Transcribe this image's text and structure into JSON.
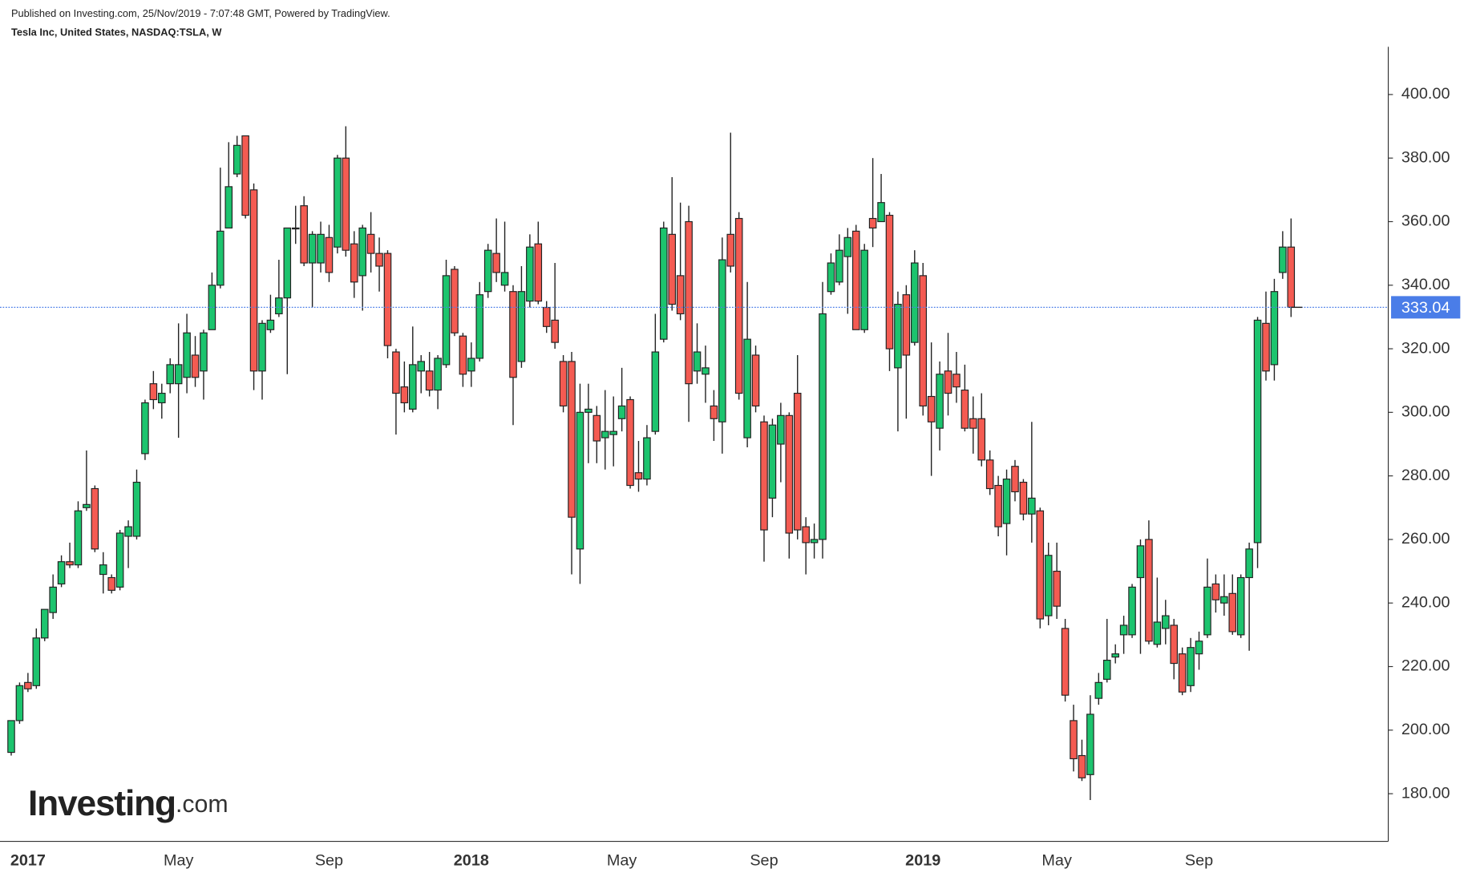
{
  "header": {
    "published": "Published on Investing.com, 25/Nov/2019 - 7:07:48 GMT, Powered by TradingView.",
    "symbol": "Tesla Inc, United States, NASDAQ:TSLA, W"
  },
  "logo": {
    "name": "Investing",
    "suffix": ".com"
  },
  "chart_data": {
    "type": "candlestick",
    "categories": [
      null,
      null,
      "2017",
      null,
      null,
      null,
      null,
      null,
      null,
      null,
      null,
      null,
      null,
      null,
      null,
      null,
      null,
      null,
      null,
      null,
      "May",
      null,
      null,
      null,
      null,
      null,
      null,
      null,
      null,
      null,
      null,
      null,
      null,
      null,
      null,
      null,
      null,
      null,
      "Sep",
      null,
      null,
      null,
      null,
      null,
      null,
      null,
      null,
      null,
      null,
      null,
      null,
      null,
      null,
      null,
      null,
      "2018",
      null,
      null,
      null,
      null,
      null,
      null,
      null,
      null,
      null,
      null,
      null,
      null,
      null,
      null,
      null,
      null,
      null,
      "May",
      null,
      null,
      null,
      null,
      null,
      null,
      null,
      null,
      null,
      null,
      null,
      null,
      null,
      null,
      null,
      null,
      "Sep",
      null,
      null,
      null,
      null,
      null,
      null,
      null,
      null,
      null,
      null,
      null,
      null,
      null,
      null,
      null,
      null,
      null,
      null,
      "2019",
      null,
      null,
      null,
      null,
      null,
      null,
      null,
      null,
      null,
      null,
      null,
      null,
      null,
      null,
      null,
      "May",
      null,
      null,
      null,
      null,
      null,
      null,
      null,
      null,
      null,
      null,
      null,
      null,
      null,
      null,
      null,
      null,
      "Sep",
      null,
      null,
      null,
      null,
      null,
      null,
      null,
      null,
      null,
      null,
      null
    ],
    "open": [
      193,
      203,
      215,
      214,
      229,
      237,
      246,
      253,
      252,
      270,
      276,
      249,
      248,
      245,
      261,
      261,
      287,
      309,
      303,
      309,
      309,
      311,
      318,
      313,
      326,
      340,
      358,
      375,
      387,
      370,
      313,
      326,
      331,
      336,
      358,
      365,
      347,
      347,
      355,
      352,
      380,
      353,
      343,
      356,
      350,
      350,
      319,
      308,
      301,
      313,
      313,
      307,
      315,
      345,
      324,
      313,
      317,
      338,
      350,
      340,
      338,
      316,
      335,
      353,
      333,
      329,
      316,
      316,
      257,
      300,
      299,
      292,
      293,
      298,
      304,
      281,
      279,
      294,
      323,
      356,
      343,
      360,
      313,
      312,
      302,
      297,
      356,
      361,
      292,
      318,
      297,
      273,
      290,
      299,
      306,
      264,
      259,
      260,
      338,
      341,
      349,
      357,
      326,
      361,
      360,
      362,
      314,
      337,
      322,
      343,
      305,
      295,
      313,
      312,
      307,
      298,
      298,
      285,
      277,
      265,
      283,
      278,
      268,
      269,
      236,
      250,
      232,
      203,
      192,
      186,
      210,
      216,
      223,
      230,
      230,
      248,
      260,
      227,
      232,
      233,
      224,
      214,
      224,
      230,
      246,
      240,
      243,
      230,
      248,
      259,
      328,
      315,
      344,
      352
    ],
    "high": [
      203,
      215,
      218,
      232,
      238,
      249,
      255,
      259,
      272,
      288,
      277,
      256,
      249,
      263,
      266,
      282,
      304,
      313,
      309,
      317,
      328,
      331,
      324,
      326,
      344,
      377,
      385,
      387,
      387,
      372,
      329,
      337,
      348,
      358,
      365,
      368,
      357,
      360,
      359,
      381,
      390,
      357,
      359,
      363,
      355,
      351,
      320,
      316,
      327,
      318,
      319,
      318,
      348,
      346,
      325,
      322,
      341,
      353,
      361,
      360,
      340,
      346,
      356,
      360,
      335,
      347,
      318,
      319,
      309,
      309,
      302,
      307,
      305,
      314,
      305,
      291,
      296,
      331,
      360,
      374,
      366,
      365,
      328,
      321,
      307,
      355,
      388,
      363,
      341,
      321,
      299,
      298,
      303,
      300,
      318,
      267,
      265,
      341,
      350,
      356,
      358,
      359,
      353,
      380,
      375,
      363,
      338,
      340,
      351,
      347,
      322,
      316,
      325,
      319,
      315,
      305,
      306,
      288,
      280,
      282,
      285,
      279,
      297,
      270,
      259,
      259,
      235,
      208,
      197,
      211,
      218,
      235,
      227,
      236,
      246,
      260,
      266,
      248,
      241,
      235,
      226,
      229,
      231,
      254,
      249,
      249,
      249,
      249,
      259,
      330,
      338,
      342,
      357,
      361
    ],
    "low": [
      192,
      202,
      212,
      213,
      228,
      235,
      245,
      251,
      251,
      269,
      256,
      243,
      243,
      244,
      251,
      260,
      285,
      301,
      298,
      306,
      292,
      306,
      308,
      304,
      326,
      339,
      358,
      374,
      361,
      307,
      304,
      325,
      330,
      312,
      353,
      346,
      333,
      344,
      341,
      350,
      349,
      336,
      332,
      344,
      338,
      317,
      293,
      300,
      300,
      306,
      305,
      301,
      314,
      324,
      308,
      308,
      316,
      336,
      341,
      338,
      296,
      314,
      333,
      334,
      325,
      320,
      300,
      249,
      246,
      284,
      284,
      282,
      283,
      294,
      276,
      275,
      277,
      293,
      322,
      332,
      329,
      297,
      309,
      303,
      291,
      287,
      344,
      304,
      289,
      300,
      253,
      267,
      278,
      254,
      260,
      249,
      254,
      254,
      337,
      340,
      331,
      326,
      325,
      352,
      360,
      313,
      294,
      298,
      321,
      299,
      280,
      288,
      299,
      303,
      294,
      287,
      283,
      274,
      261,
      255,
      272,
      266,
      259,
      232,
      233,
      235,
      209,
      187,
      184,
      178,
      208,
      215,
      221,
      224,
      229,
      224,
      227,
      226,
      227,
      216,
      211,
      212,
      219,
      229,
      237,
      236,
      230,
      229,
      225,
      251,
      310,
      310,
      342,
      330
    ],
    "close": [
      203,
      214,
      213,
      229,
      238,
      245,
      253,
      252,
      269,
      271,
      257,
      252,
      244,
      262,
      264,
      278,
      303,
      304,
      306,
      315,
      315,
      325,
      311,
      325,
      340,
      357,
      371,
      384,
      362,
      313,
      328,
      329,
      336,
      358,
      358,
      347,
      356,
      356,
      344,
      380,
      351,
      341,
      358,
      350,
      346,
      321,
      306,
      303,
      315,
      316,
      307,
      317,
      343,
      325,
      312,
      317,
      337,
      351,
      344,
      344,
      311,
      338,
      352,
      335,
      327,
      322,
      302,
      267,
      300,
      301,
      291,
      294,
      294,
      302,
      277,
      279,
      292,
      319,
      358,
      334,
      331,
      309,
      319,
      314,
      298,
      348,
      346,
      306,
      323,
      302,
      263,
      296,
      299,
      262,
      263,
      259,
      260,
      331,
      347,
      351,
      355,
      326,
      351,
      358,
      366,
      320,
      334,
      318,
      347,
      302,
      297,
      312,
      306,
      308,
      295,
      295,
      285,
      276,
      264,
      279,
      275,
      268,
      273,
      235,
      255,
      239,
      211,
      191,
      185,
      205,
      215,
      222,
      224,
      233,
      245,
      258,
      228,
      234,
      236,
      221,
      212,
      226,
      228,
      245,
      241,
      242,
      231,
      248,
      257,
      329,
      313,
      338,
      352,
      333.04
    ],
    "up_color": "#1cc46e",
    "down_color": "#f45b52",
    "outline_color": "#222222",
    "last_price_color": "#4a7de8",
    "ylim": [
      165,
      415
    ],
    "yticks": [
      {
        "value": 180,
        "label": "180.00"
      },
      {
        "value": 200,
        "label": "200.00"
      },
      {
        "value": 220,
        "label": "220.00"
      },
      {
        "value": 240,
        "label": "240.00"
      },
      {
        "value": 260,
        "label": "260.00"
      },
      {
        "value": 280,
        "label": "280.00"
      },
      {
        "value": 300,
        "label": "300.00"
      },
      {
        "value": 320,
        "label": "320.00"
      },
      {
        "value": 340,
        "label": "340.00"
      },
      {
        "value": 360,
        "label": "360.00"
      },
      {
        "value": 380,
        "label": "380.00"
      },
      {
        "value": 400,
        "label": "400.00"
      }
    ],
    "grid": false,
    "y_axis_side": "right"
  }
}
